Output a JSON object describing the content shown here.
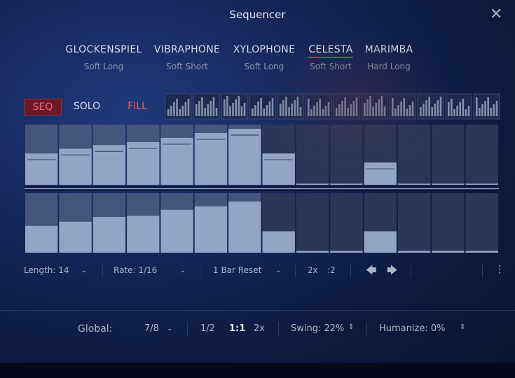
{
  "header": {
    "title": "Sequencer"
  },
  "instruments": [
    {
      "name": "GLOCKENSPIEL",
      "preset": "Soft Long"
    },
    {
      "name": "VIBRAPHONE",
      "preset": "Soft Short"
    },
    {
      "name": "XYLOPHONE",
      "preset": "Soft Long"
    },
    {
      "name": "CELESTA",
      "preset": "Soft Short"
    },
    {
      "name": "MARIMBA",
      "preset": "Hard Long"
    }
  ],
  "modes": [
    "SEQ",
    "SOLO",
    "FILL"
  ],
  "lanes": {
    "top": [
      52,
      60,
      66,
      71,
      78,
      86,
      93,
      52,
      2,
      2,
      37,
      2,
      2,
      2
    ],
    "bottom": [
      45,
      52,
      60,
      62,
      72,
      78,
      86,
      36,
      3,
      3,
      36,
      3,
      3,
      3
    ]
  },
  "toolbar": {
    "length": "Length: 14",
    "rate": "Rate: 1/16",
    "reset": "1 Bar Reset",
    "double": "2x",
    "half": ":2"
  },
  "global": {
    "label": "Global:",
    "time_signature": "7/8",
    "half": "1/2",
    "normal": "1:1",
    "double": "2x",
    "swing": "Swing: 22%",
    "humanize": "Humanize: 0%"
  }
}
